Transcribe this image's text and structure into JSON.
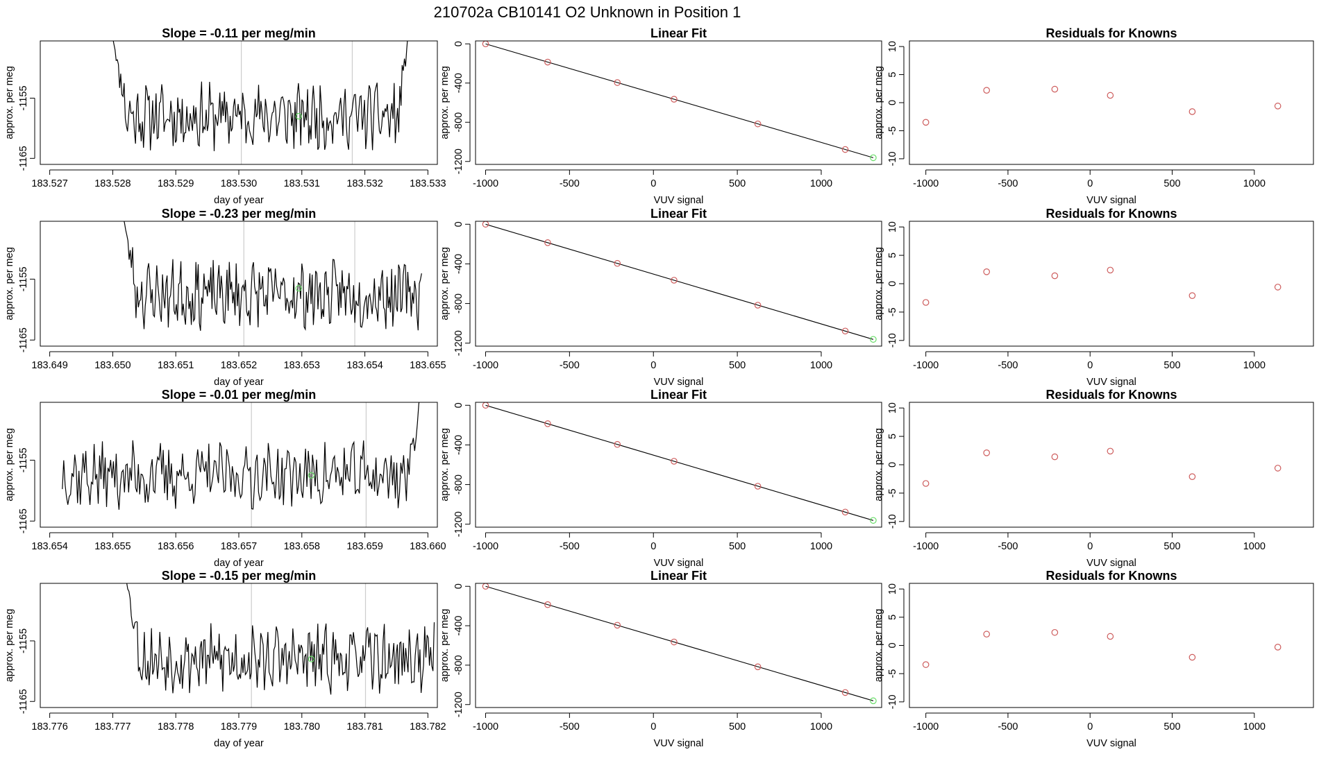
{
  "figure": {
    "title": "210702a      CB10141    O2 Unknown in Position  1"
  },
  "style": {
    "line": "#000000",
    "grid": "#cccccc",
    "known_point": "#cd5c5c",
    "unknown_point": "#66dd66"
  },
  "chart_data": [
    {
      "type": "line",
      "title": "Slope =  -0.11  per meg/min",
      "xlabel": "day of year",
      "ylabel": "approx. per meg",
      "xlim": [
        183.52685,
        183.53315
      ],
      "ylim": [
        -1166,
        -1145.5
      ],
      "xticks": [
        183.527,
        183.528,
        183.529,
        183.53,
        183.531,
        183.532,
        183.533
      ],
      "xtick_labels": [
        "183.527",
        "183.528",
        "183.529",
        "183.530",
        "183.531",
        "183.532",
        "183.533"
      ],
      "yticks": [
        -1155,
        -1165
      ],
      "ytick_labels": [
        "-1155",
        "-1165"
      ],
      "vlines": [
        183.53004,
        183.5318
      ],
      "series_start": 183.528,
      "series_end": 183.5327,
      "base": -1158,
      "rise_start": -1145,
      "rise_end": -1143,
      "end_rise": true,
      "marker": {
        "x": 183.53095,
        "y": -1158
      },
      "seed": 11
    },
    {
      "type": "scatter",
      "title": "Linear Fit",
      "xlabel": "VUV signal",
      "ylabel": "approx. per meg",
      "xlim": [
        -1060,
        1360
      ],
      "ylim": [
        -1230,
        30
      ],
      "xticks": [
        -1000,
        -500,
        0,
        500,
        1000
      ],
      "xtick_labels": [
        "-1000",
        "-500",
        "0",
        "500",
        "1000"
      ],
      "yticks": [
        0,
        -400,
        -800,
        -1200
      ],
      "ytick_labels": [
        "0",
        "-400",
        "-800",
        "-1200"
      ],
      "fit_line": [
        [
          -1000,
          0
        ],
        [
          1310,
          -1162
        ]
      ],
      "known_points": {
        "x": [
          -1000,
          -630,
          -215,
          123,
          622,
          1143
        ],
        "y": [
          0,
          -186,
          -395,
          -565,
          -817,
          -1078
        ]
      },
      "unknown_point": {
        "x": 1310,
        "y": -1162
      }
    },
    {
      "type": "scatter",
      "title": "Residuals for Knowns",
      "xlabel": "VUV signal",
      "ylabel": "approx. per meg",
      "xlim": [
        -1100,
        1360
      ],
      "ylim": [
        -11,
        11
      ],
      "xticks": [
        -1000,
        -500,
        0,
        500,
        1000
      ],
      "xtick_labels": [
        "-1000",
        "-500",
        "0",
        "500",
        "1000"
      ],
      "yticks": [
        10,
        5,
        0,
        -5,
        -10
      ],
      "ytick_labels": [
        "10",
        "5",
        "0",
        "-5",
        "-10"
      ],
      "points": {
        "x": [
          -1000,
          -630,
          -215,
          123,
          622,
          1143
        ],
        "y": [
          -3.5,
          2.2,
          2.4,
          1.3,
          -1.6,
          -0.6
        ]
      }
    },
    {
      "type": "line",
      "title": "Slope =  -0.23  per meg/min",
      "xlabel": "day of year",
      "ylabel": "approx. per meg",
      "xlim": [
        183.64885,
        183.65515
      ],
      "ylim": [
        -1166,
        -1145.5
      ],
      "xticks": [
        183.649,
        183.65,
        183.651,
        183.652,
        183.653,
        183.654,
        183.655
      ],
      "xtick_labels": [
        "183.649",
        "183.650",
        "183.651",
        "183.652",
        "183.653",
        "183.654",
        "183.655"
      ],
      "yticks": [
        -1155,
        -1165
      ],
      "ytick_labels": [
        "-1155",
        "-1165"
      ],
      "vlines": [
        183.65208,
        183.65384
      ],
      "series_start": 183.65015,
      "series_end": 183.6549,
      "base": -1157.5,
      "rise_start": -1144,
      "rise_end": -1156.5,
      "end_rise": false,
      "marker": {
        "x": 183.65295,
        "y": -1156.5
      },
      "seed": 23
    },
    {
      "type": "scatter",
      "title": "Linear Fit",
      "xlabel": "VUV signal",
      "ylabel": "approx. per meg",
      "xlim": [
        -1060,
        1360
      ],
      "ylim": [
        -1230,
        30
      ],
      "xticks": [
        -1000,
        -500,
        0,
        500,
        1000
      ],
      "xtick_labels": [
        "-1000",
        "-500",
        "0",
        "500",
        "1000"
      ],
      "yticks": [
        0,
        -400,
        -800,
        -1200
      ],
      "ytick_labels": [
        "0",
        "-400",
        "-800",
        "-1200"
      ],
      "fit_line": [
        [
          -1000,
          0
        ],
        [
          1310,
          -1162
        ]
      ],
      "known_points": {
        "x": [
          -1000,
          -630,
          -215,
          123,
          622,
          1143
        ],
        "y": [
          0,
          -186,
          -395,
          -565,
          -817,
          -1078
        ]
      },
      "unknown_point": {
        "x": 1310,
        "y": -1162
      }
    },
    {
      "type": "scatter",
      "title": "Residuals for Knowns",
      "xlabel": "VUV signal",
      "ylabel": "approx. per meg",
      "xlim": [
        -1100,
        1360
      ],
      "ylim": [
        -11,
        11
      ],
      "xticks": [
        -1000,
        -500,
        0,
        500,
        1000
      ],
      "xtick_labels": [
        "-1000",
        "-500",
        "0",
        "500",
        "1000"
      ],
      "yticks": [
        10,
        5,
        0,
        -5,
        -10
      ],
      "ytick_labels": [
        "10",
        "5",
        "0",
        "-5",
        "-10"
      ],
      "points": {
        "x": [
          -1000,
          -630,
          -215,
          123,
          622,
          1143
        ],
        "y": [
          -3.3,
          2.1,
          1.4,
          2.4,
          -2.1,
          -0.6
        ]
      }
    },
    {
      "type": "line",
      "title": "Slope =  -0.01  per meg/min",
      "xlabel": "day of year",
      "ylabel": "approx. per meg",
      "xlim": [
        183.65385,
        183.66015
      ],
      "ylim": [
        -1166,
        -1145.5
      ],
      "xticks": [
        183.654,
        183.655,
        183.656,
        183.657,
        183.658,
        183.659,
        183.66
      ],
      "xtick_labels": [
        "183.654",
        "183.655",
        "183.656",
        "183.657",
        "183.658",
        "183.659",
        "183.660"
      ],
      "yticks": [
        -1155,
        -1165
      ],
      "ytick_labels": [
        "-1155",
        "-1165"
      ],
      "vlines": [
        183.6572,
        183.65902
      ],
      "series_start": 183.6542,
      "series_end": 183.6599,
      "base": -1157.5,
      "rise_start": null,
      "rise_end": -1143,
      "end_rise": true,
      "marker": {
        "x": 183.65815,
        "y": -1157.5
      },
      "seed": 37
    },
    {
      "type": "scatter",
      "title": "Linear Fit",
      "xlabel": "VUV signal",
      "ylabel": "approx. per meg",
      "xlim": [
        -1060,
        1360
      ],
      "ylim": [
        -1230,
        30
      ],
      "xticks": [
        -1000,
        -500,
        0,
        500,
        1000
      ],
      "xtick_labels": [
        "-1000",
        "-500",
        "0",
        "500",
        "1000"
      ],
      "yticks": [
        0,
        -400,
        -800,
        -1200
      ],
      "ytick_labels": [
        "0",
        "-400",
        "-800",
        "-1200"
      ],
      "fit_line": [
        [
          -1000,
          0
        ],
        [
          1310,
          -1162
        ]
      ],
      "known_points": {
        "x": [
          -1000,
          -630,
          -215,
          123,
          622,
          1143
        ],
        "y": [
          0,
          -186,
          -395,
          -565,
          -817,
          -1078
        ]
      },
      "unknown_point": {
        "x": 1310,
        "y": -1162
      }
    },
    {
      "type": "scatter",
      "title": "Residuals for Knowns",
      "xlabel": "VUV signal",
      "ylabel": "approx. per meg",
      "xlim": [
        -1100,
        1360
      ],
      "ylim": [
        -11,
        11
      ],
      "xticks": [
        -1000,
        -500,
        0,
        500,
        1000
      ],
      "xtick_labels": [
        "-1000",
        "-500",
        "0",
        "500",
        "1000"
      ],
      "yticks": [
        10,
        5,
        0,
        -5,
        -10
      ],
      "ytick_labels": [
        "10",
        "5",
        "0",
        "-5",
        "-10"
      ],
      "points": {
        "x": [
          -1000,
          -630,
          -215,
          123,
          622,
          1143
        ],
        "y": [
          -3.3,
          2.1,
          1.4,
          2.4,
          -2.1,
          -0.6
        ]
      }
    },
    {
      "type": "line",
      "title": "Slope =  -0.15  per meg/min",
      "xlabel": "day of year",
      "ylabel": "approx. per meg",
      "xlim": [
        183.77585,
        183.78215
      ],
      "ylim": [
        -1166,
        -1145.5
      ],
      "xticks": [
        183.776,
        183.777,
        183.778,
        183.779,
        183.78,
        183.781,
        183.782
      ],
      "xtick_labels": [
        "183.776",
        "183.777",
        "183.778",
        "183.779",
        "183.780",
        "183.781",
        "183.782"
      ],
      "yticks": [
        -1155,
        -1165
      ],
      "ytick_labels": [
        "-1155",
        "-1165"
      ],
      "vlines": [
        183.7792,
        183.78101
      ],
      "series_start": 183.7772,
      "series_end": 183.7821,
      "base": -1158,
      "rise_start": -1144,
      "rise_end": -1157.5,
      "end_rise": false,
      "marker": {
        "x": 183.78015,
        "y": -1158
      },
      "seed": 53
    },
    {
      "type": "scatter",
      "title": "Linear Fit",
      "xlabel": "VUV signal",
      "ylabel": "approx. per meg",
      "xlim": [
        -1060,
        1360
      ],
      "ylim": [
        -1230,
        30
      ],
      "xticks": [
        -1000,
        -500,
        0,
        500,
        1000
      ],
      "xtick_labels": [
        "-1000",
        "-500",
        "0",
        "500",
        "1000"
      ],
      "yticks": [
        0,
        -400,
        -800,
        -1200
      ],
      "ytick_labels": [
        "0",
        "-400",
        "-800",
        "-1200"
      ],
      "fit_line": [
        [
          -1000,
          0
        ],
        [
          1310,
          -1162
        ]
      ],
      "known_points": {
        "x": [
          -1000,
          -630,
          -215,
          123,
          622,
          1143
        ],
        "y": [
          0,
          -186,
          -395,
          -565,
          -817,
          -1078
        ]
      },
      "unknown_point": {
        "x": 1310,
        "y": -1162
      }
    },
    {
      "type": "scatter",
      "title": "Residuals for Knowns",
      "xlabel": "VUV signal",
      "ylabel": "approx. per meg",
      "xlim": [
        -1100,
        1360
      ],
      "ylim": [
        -11,
        11
      ],
      "xticks": [
        -1000,
        -500,
        0,
        500,
        1000
      ],
      "xtick_labels": [
        "-1000",
        "-500",
        "0",
        "500",
        "1000"
      ],
      "yticks": [
        10,
        5,
        0,
        -5,
        -10
      ],
      "ytick_labels": [
        "10",
        "5",
        "0",
        "-5",
        "-10"
      ],
      "points": {
        "x": [
          -1000,
          -630,
          -215,
          123,
          622,
          1143
        ],
        "y": [
          -3.4,
          2.0,
          2.3,
          1.6,
          -2.1,
          -0.3
        ]
      }
    }
  ]
}
